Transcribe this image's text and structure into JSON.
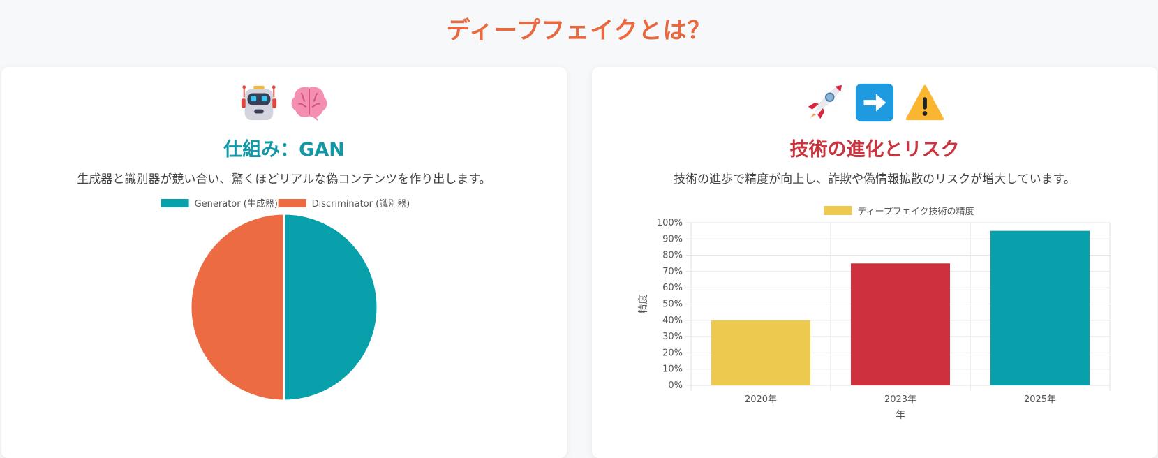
{
  "page": {
    "title": "ディープフェイクとは？"
  },
  "left_card": {
    "icons": [
      "robot-icon",
      "brain-icon"
    ],
    "title": "仕組み：GAN",
    "description": "生成器と識別器が競い合い、驚くほどリアルな偽コンテンツを作り出します。"
  },
  "right_card": {
    "icons": [
      "rocket-icon",
      "right-arrow-icon",
      "warning-icon"
    ],
    "title": "技術の進化とリスク",
    "description": "技術の進歩で精度が向上し、詐欺や偽情報拡散のリスクが増大しています。"
  },
  "chart_data": [
    {
      "type": "pie",
      "labels": [
        "Generator (生成器)",
        "Discriminator (識別器)"
      ],
      "values": [
        50,
        50
      ],
      "colors": [
        "#08a0aa",
        "#ec6b42"
      ],
      "legend": "top"
    },
    {
      "type": "bar",
      "categories": [
        "2020年",
        "2023年",
        "2025年"
      ],
      "values": [
        40,
        75,
        95
      ],
      "colors": [
        "#eec94f",
        "#cf303e",
        "#08a0aa"
      ],
      "series": [
        {
          "name": "ディープフェイク技術の精度",
          "values": [
            40,
            75,
            95
          ]
        }
      ],
      "legend_color": "#eec94f",
      "ylim": [
        0,
        100
      ],
      "yticks": [
        "0%",
        "10%",
        "20%",
        "30%",
        "40%",
        "50%",
        "60%",
        "70%",
        "80%",
        "90%",
        "100%"
      ],
      "xlabel": "年",
      "ylabel": "精度",
      "grid": true,
      "legend": "top"
    }
  ]
}
